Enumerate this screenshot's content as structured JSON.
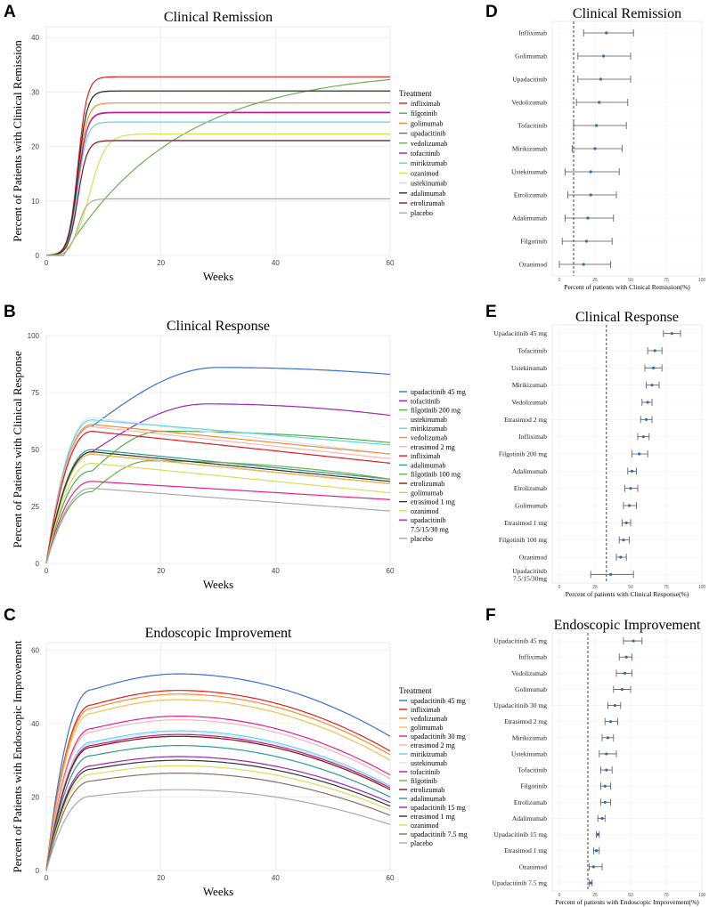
{
  "panel_labels": [
    "A",
    "B",
    "C",
    "D",
    "E",
    "F"
  ],
  "chart_data": [
    {
      "id": "A",
      "type": "line",
      "title": "Clinical Remission",
      "xlabel": "Weeks",
      "ylabel": "Percent of Patients with Clinical Remission",
      "xlim": [
        0,
        60
      ],
      "ylim": [
        0,
        42
      ],
      "xticks": [
        "0",
        "20",
        "40",
        "60"
      ],
      "yticks": [
        "0",
        "10",
        "20",
        "30",
        "40"
      ],
      "legend_title": "Treatment",
      "legend_position": "right",
      "series": [
        {
          "name": "infliximab",
          "plateau": 32.8,
          "color": "#e41a1c",
          "shape": "sigmoid"
        },
        {
          "name": "filgotinib",
          "plateau": 30.2,
          "color": "#4daf4a",
          "shape": "sigmoid"
        },
        {
          "name": "golimumab",
          "plateau": 28.0,
          "color": "#f28e2b",
          "shape": "sigmoid"
        },
        {
          "name": "upadacitinib",
          "plateau": 26.3,
          "color": "#984ea3",
          "shape": "sigmoid"
        },
        {
          "name": "vedolizumab",
          "plateau": 32.3,
          "color": "#6ab04c",
          "shape": "slow"
        },
        {
          "name": "tofacitinib",
          "plateau": 26.2,
          "color": "#c2188b",
          "shape": "sigmoid"
        },
        {
          "name": "mirikizumab",
          "plateau": 24.5,
          "color": "#5fd3e8",
          "shape": "sigmoid"
        },
        {
          "name": "ozanimod",
          "plateau": 22.3,
          "color": "#d4e157",
          "shape": "slowsig"
        },
        {
          "name": "ustekinumab",
          "plateau": 21.0,
          "color": "#c6dbef",
          "shape": "sigmoid"
        },
        {
          "name": "adalimumab",
          "plateau": 30.2,
          "color": "#2f2f2f",
          "shape": "sigmoid"
        },
        {
          "name": "etrolizumab",
          "plateau": 21.1,
          "color": "#8b1a1a",
          "shape": "sigmoid"
        },
        {
          "name": "placebo",
          "plateau": 10.4,
          "color": "#aaaaaa",
          "shape": "sigmoid"
        }
      ]
    },
    {
      "id": "B",
      "type": "line",
      "title": "Clinical Response",
      "xlabel": "Weeks",
      "ylabel": "Percent of Patients with Clinical Response",
      "xlim": [
        0,
        60
      ],
      "ylim": [
        0,
        100
      ],
      "xticks": [
        "0",
        "20",
        "40",
        "60"
      ],
      "yticks": [
        "0",
        "25",
        "50",
        "75",
        "100"
      ],
      "legend_title": "",
      "legend_position": "right",
      "series": [
        {
          "name": "upadacitinib 45 mg",
          "peak": 86,
          "peak_week": 30,
          "end": 83,
          "color": "#3b6fd4"
        },
        {
          "name": "tofacitinib",
          "peak": 70,
          "peak_week": 28,
          "end": 65,
          "color": "#9c27b0"
        },
        {
          "name": "filgotinib 200 mg",
          "peak": 58,
          "peak_week": 20,
          "end": 53,
          "color": "#4daf4a"
        },
        {
          "name": "ustekinumab",
          "peak": 64,
          "peak_week": 8,
          "end": 48,
          "color": "#d0e4f5"
        },
        {
          "name": "mirikizumab",
          "peak": 63,
          "peak_week": 8,
          "end": 52,
          "color": "#5fd3e8"
        },
        {
          "name": "vedolizumab",
          "peak": 61,
          "peak_week": 8,
          "end": 48,
          "color": "#f28e2b"
        },
        {
          "name": "etrasimod 2 mg",
          "peak": 60,
          "peak_week": 8,
          "end": 46,
          "color": "#f7b6b2"
        },
        {
          "name": "infliximab",
          "peak": 58,
          "peak_week": 8,
          "end": 44,
          "color": "#e41a1c"
        },
        {
          "name": "adalimumab",
          "peak": 50,
          "peak_week": 8,
          "end": 37,
          "color": "#2a9d8f"
        },
        {
          "name": "filgotinib 100 mg",
          "peak": 45,
          "peak_week": 18,
          "end": 37,
          "color": "#6ab04c"
        },
        {
          "name": "etrolizumab",
          "peak": 48,
          "peak_week": 8,
          "end": 35,
          "color": "#8b1a1a"
        },
        {
          "name": "golimumab",
          "peak": 48,
          "peak_week": 8,
          "end": 35,
          "color": "#f2c14e"
        },
        {
          "name": "etrasimod 1 mg",
          "peak": 49,
          "peak_week": 8,
          "end": 36,
          "color": "#333333"
        },
        {
          "name": "ozanimod",
          "peak": 44,
          "peak_week": 8,
          "end": 31,
          "color": "#d4e157"
        },
        {
          "name": "upadacitinib 7.5/15/30 mg",
          "peak": 36,
          "peak_week": 8,
          "end": 28,
          "color": "#e91e8c"
        },
        {
          "name": "placebo",
          "peak": 33,
          "peak_week": 8,
          "end": 23,
          "color": "#aaaaaa"
        }
      ],
      "legend_display": [
        "upadacitinib 45 mg",
        "tofacitinib",
        "filgotinib 200 mg",
        "ustekinumab",
        "mirikizumab",
        "vedolizumab",
        "etrasimod 2 mg",
        "infliximab",
        "adalimumab",
        "filgotinib 100 mg",
        "etrolizumab",
        "golimumab",
        "etrasimod 1 mg",
        "ozanimod",
        "upadacitinib",
        "7.5/15/30 mg",
        "placebo"
      ]
    },
    {
      "id": "C",
      "type": "line",
      "title": "Endoscopic Improvement",
      "xlabel": "Weeks",
      "ylabel": "Percent of Patients with Endoscopic Improvement",
      "xlim": [
        0,
        60
      ],
      "ylim": [
        0,
        62
      ],
      "xticks": [
        "0",
        "20",
        "40",
        "60"
      ],
      "yticks": [
        "0",
        "20",
        "40",
        "60"
      ],
      "legend_title": "Treatment",
      "legend_position": "right",
      "series": [
        {
          "name": "upadacitinib 45 mg",
          "peak": 53.5,
          "end": 36.5,
          "color": "#3b6fd4"
        },
        {
          "name": "infliximab",
          "peak": 49.0,
          "end": 32.5,
          "color": "#e41a1c"
        },
        {
          "name": "vedolizumab",
          "peak": 48.0,
          "end": 31.5,
          "color": "#f28e2b"
        },
        {
          "name": "golimumab",
          "peak": 46.5,
          "end": 30.0,
          "color": "#f2c14e"
        },
        {
          "name": "upadacitinib 30 mg",
          "peak": 42.0,
          "end": 26.0,
          "color": "#e91e8c"
        },
        {
          "name": "etrasimod 2 mg",
          "peak": 41.0,
          "end": 25.0,
          "color": "#f7b6b2"
        },
        {
          "name": "mirikizumab",
          "peak": 38.0,
          "end": 23.0,
          "color": "#5fd3e8"
        },
        {
          "name": "ustekinumab",
          "peak": 37.5,
          "end": 22.5,
          "color": "#d0e4f5"
        },
        {
          "name": "tofacitinib",
          "peak": 37.0,
          "end": 22.5,
          "color": "#c2188b"
        },
        {
          "name": "filgotinib",
          "peak": 36.5,
          "end": 22.0,
          "color": "#6ab04c"
        },
        {
          "name": "etrolizumab",
          "peak": 36.5,
          "end": 22.0,
          "color": "#8b1a1a"
        },
        {
          "name": "adalimumab",
          "peak": 34.0,
          "end": 20.0,
          "color": "#2a9d8f"
        },
        {
          "name": "upadacitinib 15 mg",
          "peak": 31.0,
          "end": 18.5,
          "color": "#9c27b0"
        },
        {
          "name": "etrasimod 1 mg",
          "peak": 30.0,
          "end": 17.5,
          "color": "#333333"
        },
        {
          "name": "ozanimod",
          "peak": 28.5,
          "end": 16.5,
          "color": "#d4e157"
        },
        {
          "name": "upadacitinib 7.5 mg",
          "peak": 26.5,
          "end": 15.0,
          "color": "#8d6e63"
        },
        {
          "name": "placebo",
          "peak": 22.0,
          "end": 12.5,
          "color": "#aaaaaa"
        }
      ]
    },
    {
      "id": "D",
      "type": "forest",
      "title": "Clinical Remission",
      "xlabel": "Percent of patients with Clinical Remission(%)",
      "xlim": [
        -5,
        100
      ],
      "xticks": [
        "0",
        "25",
        "50",
        "75",
        "100"
      ],
      "reference": 10,
      "rows": [
        {
          "label": "Infliximab",
          "est": 33,
          "lo": 17,
          "hi": 52
        },
        {
          "label": "Golimumab",
          "est": 31,
          "lo": 13,
          "hi": 50
        },
        {
          "label": "Upadacitinib",
          "est": 29,
          "lo": 13,
          "hi": 50
        },
        {
          "label": "Vedolizumab",
          "est": 28,
          "lo": 12,
          "hi": 48
        },
        {
          "label": "Tofacitinib",
          "est": 26,
          "lo": 10,
          "hi": 47
        },
        {
          "label": "Mirikizumab",
          "est": 25,
          "lo": 9,
          "hi": 44
        },
        {
          "label": "Ustekinumab",
          "est": 22,
          "lo": 4,
          "hi": 42
        },
        {
          "label": "Etrolizumab",
          "est": 22,
          "lo": 6,
          "hi": 40
        },
        {
          "label": "Adalimumab",
          "est": 20,
          "lo": 4,
          "hi": 38
        },
        {
          "label": "Filgotinib",
          "est": 19,
          "lo": 2,
          "hi": 37
        },
        {
          "label": "Ozanimod",
          "est": 17,
          "lo": 0,
          "hi": 36
        }
      ]
    },
    {
      "id": "E",
      "type": "forest",
      "title": "Clinical Response",
      "xlabel": "Percent of patients with Clinical Response(%)",
      "xlim": [
        -5,
        100
      ],
      "xticks": [
        "0",
        "25",
        "50",
        "75",
        "100"
      ],
      "reference": 33,
      "rows": [
        {
          "label": "Upadacitinib 45 mg",
          "est": 79,
          "lo": 73,
          "hi": 85
        },
        {
          "label": "Tofacitinib",
          "est": 67,
          "lo": 62,
          "hi": 72
        },
        {
          "label": "Ustekinumab",
          "est": 66,
          "lo": 60,
          "hi": 72
        },
        {
          "label": "Mirikizumab",
          "est": 65,
          "lo": 61,
          "hi": 70
        },
        {
          "label": "Vedolizumab",
          "est": 62,
          "lo": 58,
          "hi": 65
        },
        {
          "label": "Etrasimod 2 mg",
          "est": 61,
          "lo": 57,
          "hi": 65
        },
        {
          "label": "Infliximab",
          "est": 59,
          "lo": 55,
          "hi": 63
        },
        {
          "label": "Filgotinib 200 mg",
          "est": 56,
          "lo": 51,
          "hi": 62
        },
        {
          "label": "Adalimumab",
          "est": 51,
          "lo": 48,
          "hi": 54
        },
        {
          "label": "Etrolizumab",
          "est": 50,
          "lo": 46,
          "hi": 55
        },
        {
          "label": "Golimumab",
          "est": 49,
          "lo": 45,
          "hi": 54
        },
        {
          "label": "Etrasimod 1 mg",
          "est": 47,
          "lo": 44,
          "hi": 50
        },
        {
          "label": "Filgotinib 100 mg",
          "est": 45,
          "lo": 42,
          "hi": 49
        },
        {
          "label": "Ozanimod",
          "est": 43,
          "lo": 40,
          "hi": 47
        },
        {
          "label": "Upadacitinib 7.5/15/30mg",
          "est": 36,
          "lo": 22,
          "hi": 52
        }
      ]
    },
    {
      "id": "F",
      "type": "forest",
      "title": "Endoscopic Improvement",
      "xlabel": "Percent of patients with Endoscopic Improvement(%)",
      "xlim": [
        -5,
        100
      ],
      "xticks": [
        "0",
        "25",
        "50",
        "75",
        "100"
      ],
      "reference": 20,
      "rows": [
        {
          "label": "Upadacitinib 45 mg",
          "est": 52,
          "lo": 45,
          "hi": 58
        },
        {
          "label": "Infliximab",
          "est": 47,
          "lo": 42,
          "hi": 51
        },
        {
          "label": "Vedolizumab",
          "est": 46,
          "lo": 40,
          "hi": 51
        },
        {
          "label": "Golimumab",
          "est": 44,
          "lo": 38,
          "hi": 50
        },
        {
          "label": "Upadacitinib 30 mg",
          "est": 39,
          "lo": 34,
          "hi": 43
        },
        {
          "label": "Etrasimod 2 mg",
          "est": 36,
          "lo": 32,
          "hi": 41
        },
        {
          "label": "Mirikizumab",
          "est": 34,
          "lo": 30,
          "hi": 38
        },
        {
          "label": "Ustekinumab",
          "est": 33,
          "lo": 28,
          "hi": 40
        },
        {
          "label": "Tofacitinib",
          "est": 33,
          "lo": 29,
          "hi": 37
        },
        {
          "label": "Filgotinib",
          "est": 32,
          "lo": 29,
          "hi": 36
        },
        {
          "label": "Etrolizumab",
          "est": 32,
          "lo": 29,
          "hi": 36
        },
        {
          "label": "Adalimumab",
          "est": 30,
          "lo": 27,
          "hi": 32
        },
        {
          "label": "Upadacitinib 15 mg",
          "est": 27,
          "lo": 26,
          "hi": 28
        },
        {
          "label": "Etrasimod 1 mg",
          "est": 26,
          "lo": 24,
          "hi": 28
        },
        {
          "label": "Ozanimod",
          "est": 24,
          "lo": 21,
          "hi": 30
        },
        {
          "label": "Upadacitinib 7.5 mg",
          "est": 22,
          "lo": 21,
          "hi": 23
        }
      ]
    }
  ]
}
